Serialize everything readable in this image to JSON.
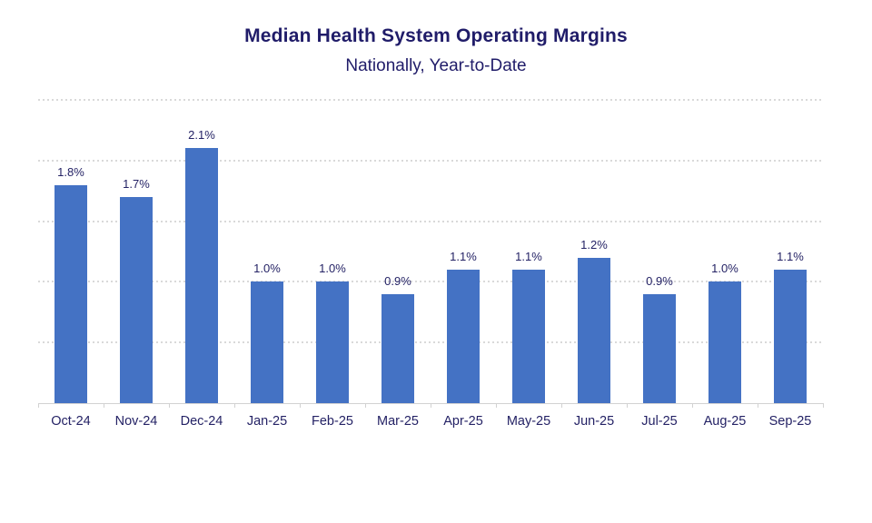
{
  "chart_data": {
    "type": "bar",
    "title": "Median Health System Operating Margins",
    "subtitle": "Nationally, Year-to-Date",
    "categories": [
      "Oct-24",
      "Nov-24",
      "Dec-24",
      "Jan-25",
      "Feb-25",
      "Mar-25",
      "Apr-25",
      "May-25",
      "Jun-25",
      "Jul-25",
      "Aug-25",
      "Sep-25"
    ],
    "values": [
      1.8,
      1.7,
      2.1,
      1.0,
      1.0,
      0.9,
      1.1,
      1.1,
      1.2,
      0.9,
      1.0,
      1.1
    ],
    "data_labels": [
      "1.8%",
      "1.7%",
      "2.1%",
      "1.0%",
      "1.0%",
      "0.9%",
      "1.1%",
      "1.1%",
      "1.2%",
      "0.9%",
      "1.0%",
      "1.1%"
    ],
    "xlabel": "",
    "ylabel": "",
    "ylim": [
      0,
      2.5
    ],
    "gridline_interval": 0.5,
    "grid": "horizontal-dotted",
    "legend": "none",
    "colors": {
      "bar": "#4472C4",
      "title_text": "#201C69",
      "label_text": "#242265",
      "gridline": "#D9D9D9",
      "axis_line": "#D2D2D2"
    }
  }
}
